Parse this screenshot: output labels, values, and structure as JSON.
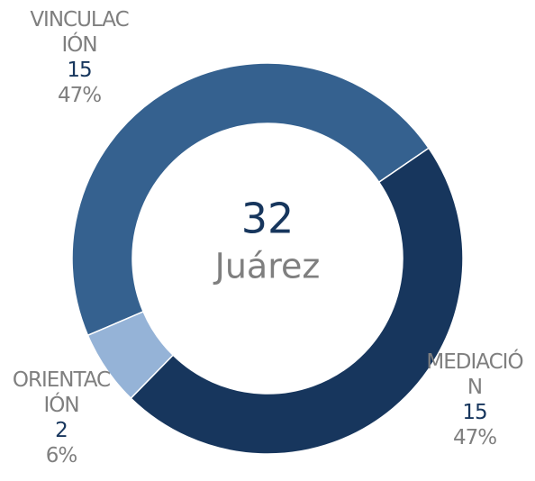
{
  "chart_data": {
    "type": "donut",
    "categories": [
      "MEDIACIÓN",
      "ORIENTACIÓN",
      "VINCULACIÓN"
    ],
    "values": [
      15,
      2,
      15
    ],
    "percent_labels": [
      "47%",
      "6%",
      "47%"
    ],
    "colors": [
      "#17365d",
      "#95b3d7",
      "#35618f"
    ],
    "center_value": 32,
    "center_label": "Juárez"
  }
}
